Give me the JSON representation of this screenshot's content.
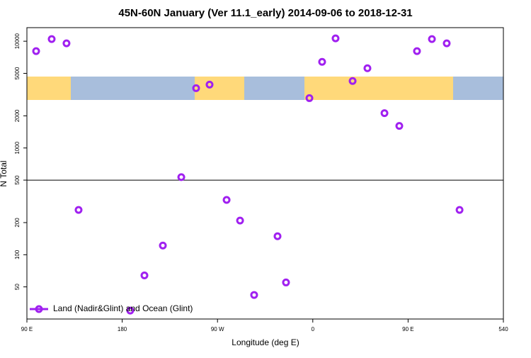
{
  "chart_data": {
    "type": "scatter",
    "title": "45N-60N January (Ver 11.1_early)   2014-09-06 to 2018-12-31",
    "x_label": "Longitude (deg E)",
    "y_label": "N Total",
    "log_y": true,
    "hline": 500,
    "legend_position": "bottom-left",
    "xlim": [
      90,
      540
    ],
    "xticks": [
      {
        "value": 90,
        "label": "90 E"
      },
      180,
      {
        "value": 270,
        "label": "90 W"
      },
      {
        "value": 360,
        "label": "0"
      },
      {
        "value": 450,
        "label": "90 E"
      },
      540
    ],
    "ylim": [
      25,
      13400
    ],
    "yticks": [
      50,
      100,
      200,
      500,
      1000,
      2000,
      5000,
      10000
    ],
    "series": [
      {
        "name": "Land (Nadir&Glint) and Ocean (Glint)",
        "color": "#a020f0",
        "x": [
          98.7,
          113.4,
          127.4,
          138.8,
          187.6,
          201,
          218.4,
          235.8,
          249.8,
          262.5,
          278.6,
          291.3,
          304.6,
          326.7,
          334.7,
          356.8,
          368.8,
          381.5,
          397.6,
          411.6,
          427.7,
          441.7,
          458.4,
          472.5,
          486.5,
          498.6
        ],
        "values": [
          8070,
          10470,
          9550,
          263,
          30,
          64,
          122,
          533,
          3630,
          3920,
          326,
          209,
          42,
          149,
          55,
          2930,
          6410,
          10640,
          4240,
          5580,
          2120,
          1610,
          8070,
          10470,
          9550,
          263
        ]
      }
    ]
  }
}
